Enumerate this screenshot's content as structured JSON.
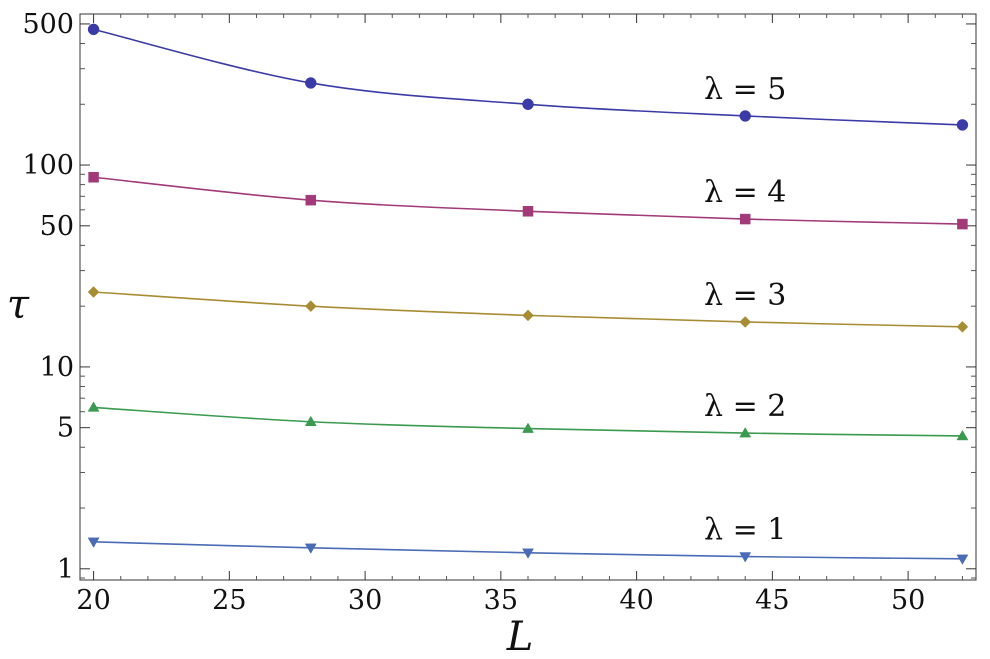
{
  "chart_data": {
    "type": "line",
    "xlabel": "L",
    "ylabel": "τ",
    "xlim": [
      19.5,
      52.5
    ],
    "ylim": [
      0.88,
      560
    ],
    "y_scale": "log",
    "grid": false,
    "x": [
      20,
      28,
      36,
      44,
      52
    ],
    "x_ticks": [
      20,
      25,
      30,
      35,
      40,
      45,
      50
    ],
    "y_ticks": [
      1,
      5,
      10,
      50,
      100,
      500
    ],
    "series": [
      {
        "name": "λ = 1",
        "label_text": "λ = 1",
        "values": [
          1.36,
          1.27,
          1.2,
          1.15,
          1.12
        ],
        "color": "#4a6bb5",
        "marker": "triangle-down",
        "label_at": 44
      },
      {
        "name": "λ = 2",
        "label_text": "λ = 2",
        "values": [
          6.3,
          5.35,
          4.95,
          4.7,
          4.55
        ],
        "color": "#3a9a4f",
        "marker": "triangle-up",
        "label_at": 44
      },
      {
        "name": "λ = 3",
        "label_text": "λ = 3",
        "values": [
          23.5,
          20.0,
          18.0,
          16.7,
          15.8
        ],
        "color": "#a88c34",
        "marker": "diamond",
        "label_at": 44
      },
      {
        "name": "λ = 4",
        "label_text": "λ = 4",
        "values": [
          87,
          67,
          59,
          54,
          51
        ],
        "color": "#a23a79",
        "marker": "square",
        "label_at": 44
      },
      {
        "name": "λ = 5",
        "label_text": "λ = 5",
        "values": [
          470,
          255,
          200,
          175,
          158
        ],
        "color": "#3b3ba8",
        "marker": "circle",
        "label_at": 44
      }
    ]
  }
}
